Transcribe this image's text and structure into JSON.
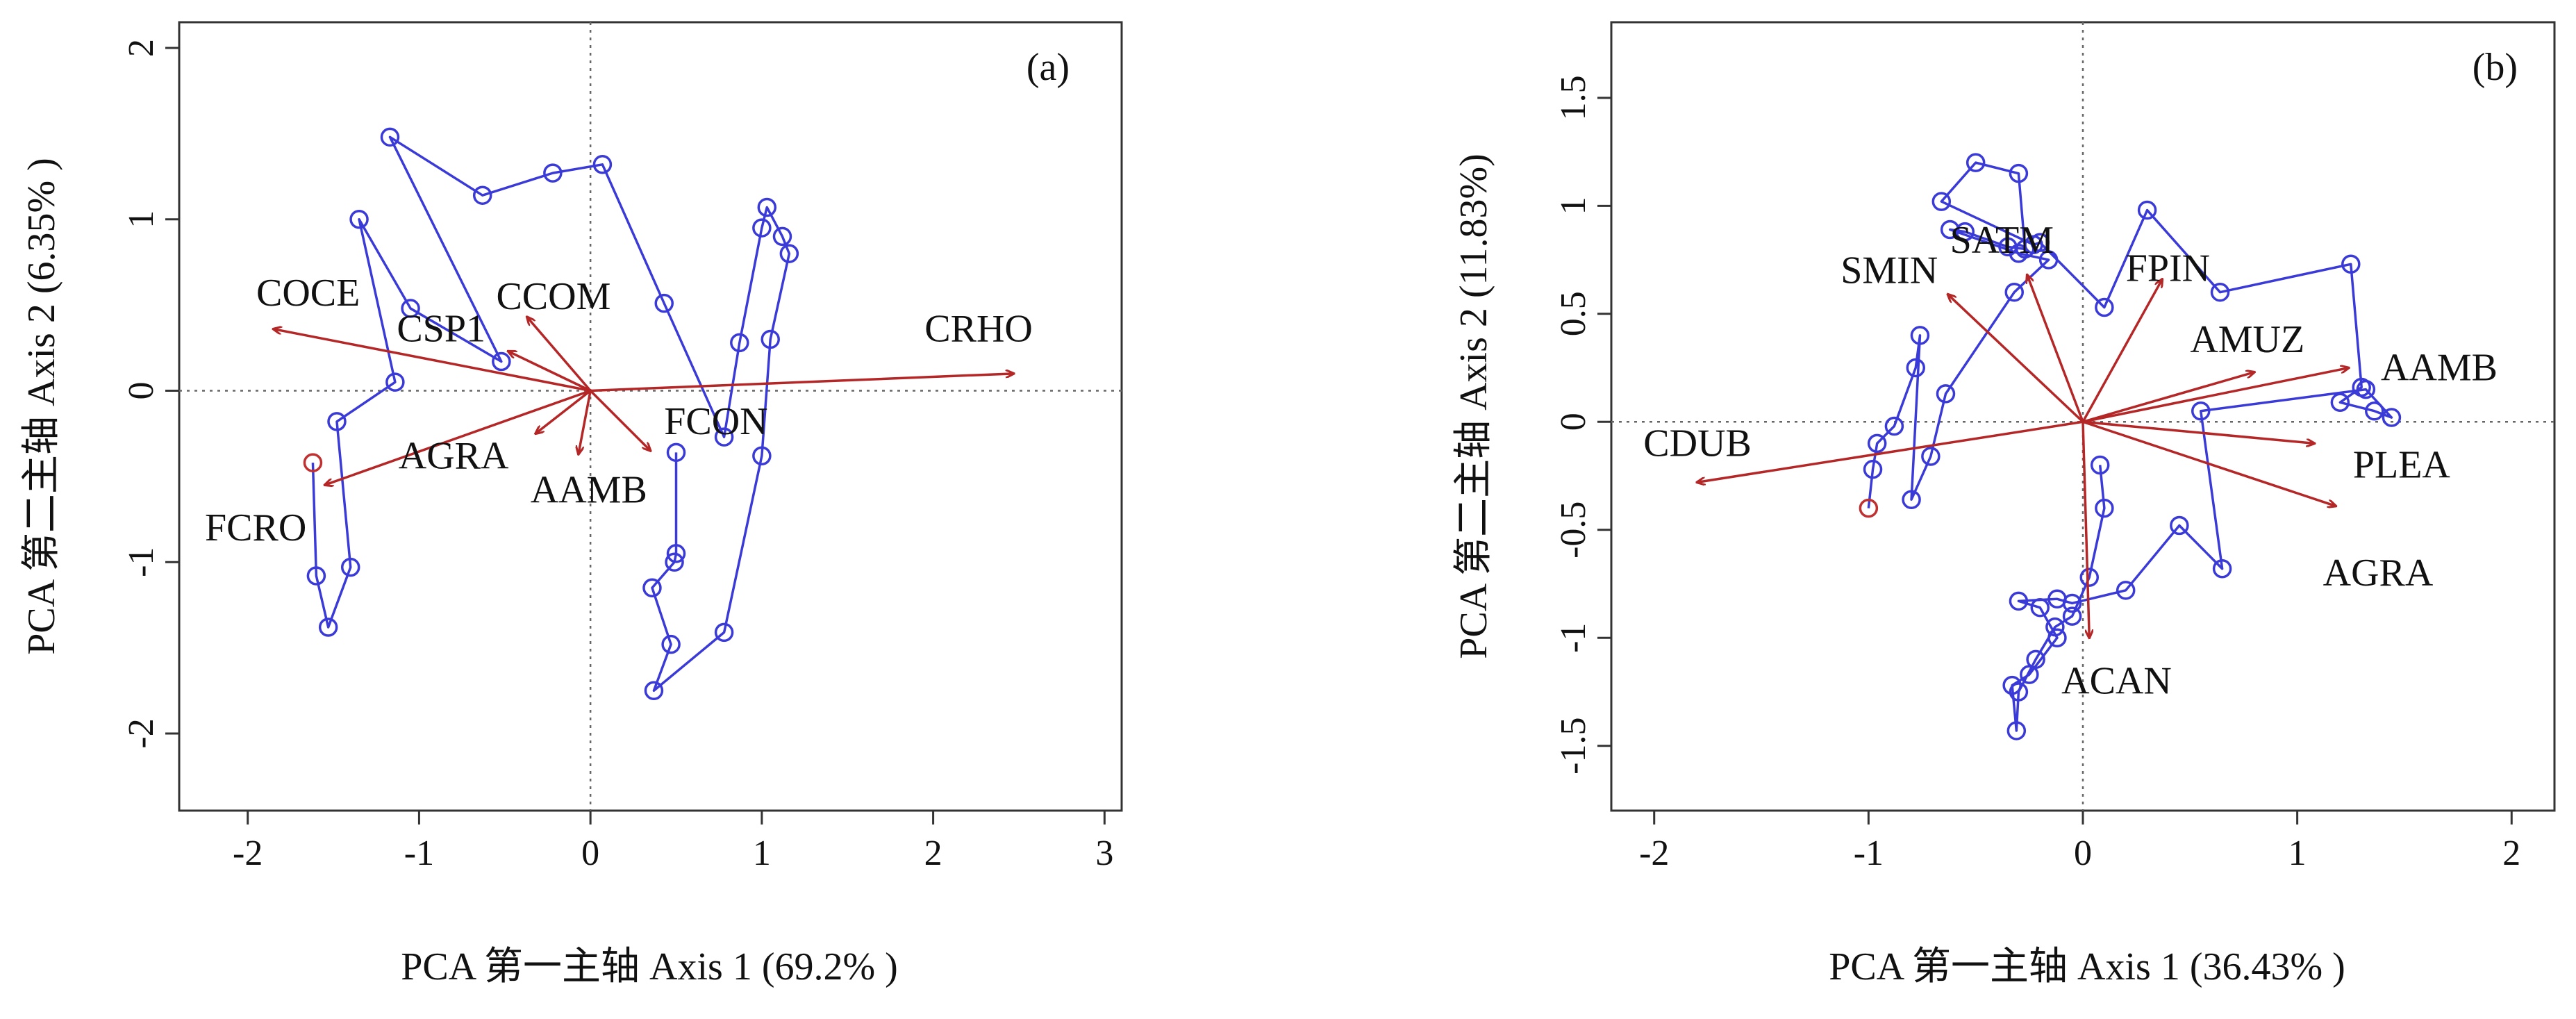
{
  "colors": {
    "trajectory": "#3a3ad8",
    "arrows": "#b52626",
    "start_point": "#c03030",
    "frame": "#333333",
    "reference_lines": "#666666"
  },
  "chart_data": [
    {
      "type": "scatter",
      "panel_label": "(a)",
      "xlabel": "PCA 第一主轴 Axis 1 (69.2% )",
      "ylabel": "PCA 第二主轴 Axis 2 (6.35% )",
      "xlim": [
        -2.4,
        3.1
      ],
      "ylim": [
        -2.45,
        2.15
      ],
      "xticks": [
        -2,
        -1,
        0,
        1,
        2,
        3
      ],
      "yticks": [
        -2,
        -1,
        0,
        1,
        2
      ],
      "reference_lines": "dotted lines at x = 0 and y = 0",
      "trajectory": {
        "start": [
          -1.62,
          -0.42
        ],
        "points": [
          [
            -1.62,
            -0.42
          ],
          [
            -1.6,
            -1.08
          ],
          [
            -1.53,
            -1.38
          ],
          [
            -1.4,
            -1.03
          ],
          [
            -1.48,
            -0.18
          ],
          [
            -1.14,
            0.05
          ],
          [
            -1.35,
            1.0
          ],
          [
            -1.05,
            0.48
          ],
          [
            -0.52,
            0.17
          ],
          [
            -1.17,
            1.48
          ],
          [
            -0.63,
            1.14
          ],
          [
            -0.22,
            1.27
          ],
          [
            0.07,
            1.32
          ],
          [
            0.43,
            0.51
          ],
          [
            0.78,
            -0.27
          ],
          [
            0.87,
            0.28
          ],
          [
            1.0,
            0.95
          ],
          [
            1.03,
            1.07
          ],
          [
            1.12,
            0.9
          ],
          [
            1.16,
            0.8
          ],
          [
            1.05,
            0.3
          ],
          [
            1.0,
            -0.38
          ],
          [
            0.78,
            -1.41
          ],
          [
            0.37,
            -1.75
          ],
          [
            0.47,
            -1.48
          ],
          [
            0.36,
            -1.15
          ],
          [
            0.49,
            -1.0
          ],
          [
            0.5,
            -0.95
          ],
          [
            0.5,
            -0.36
          ]
        ]
      },
      "arrows": [
        {
          "label": "COCE",
          "x": -1.85,
          "y": 0.36
        },
        {
          "label": "CSP1",
          "x": -0.48,
          "y": 0.23
        },
        {
          "label": "CCOM",
          "x": -0.37,
          "y": 0.43
        },
        {
          "label": "CRHO",
          "x": 2.47,
          "y": 0.1
        },
        {
          "label": "FCRO",
          "x": -1.55,
          "y": -0.55
        },
        {
          "label": "AGRA",
          "x": -0.32,
          "y": -0.25
        },
        {
          "label": "AAMB",
          "x": -0.07,
          "y": -0.37
        },
        {
          "label": "FCON",
          "x": 0.35,
          "y": -0.35
        }
      ]
    },
    {
      "type": "scatter",
      "panel_label": "(b)",
      "xlabel": "PCA 第一主轴 Axis 1 (36.43% )",
      "ylabel": "PCA 第二主轴 Axis 2 (11.83%)",
      "xlim": [
        -2.2,
        2.2
      ],
      "ylim": [
        -1.8,
        1.85
      ],
      "xticks": [
        -2,
        -1,
        0,
        1,
        2
      ],
      "yticks": [
        -1.5,
        -1,
        -0.5,
        0,
        0.5,
        1,
        1.5
      ],
      "reference_lines": "dotted lines at x = 0 and y = 0",
      "trajectory": {
        "start": [
          -1.0,
          -0.4
        ],
        "points": [
          [
            -1.0,
            -0.4
          ],
          [
            -0.98,
            -0.22
          ],
          [
            -0.96,
            -0.1
          ],
          [
            -0.88,
            -0.02
          ],
          [
            -0.78,
            0.25
          ],
          [
            -0.76,
            0.4
          ],
          [
            -0.8,
            -0.36
          ],
          [
            -0.71,
            -0.16
          ],
          [
            -0.64,
            0.13
          ],
          [
            -0.32,
            0.6
          ],
          [
            -0.16,
            0.75
          ],
          [
            -0.3,
            0.78
          ],
          [
            -0.62,
            0.89
          ],
          [
            -0.55,
            0.88
          ],
          [
            -0.35,
            0.81
          ],
          [
            -0.27,
            0.8
          ],
          [
            -0.3,
            1.15
          ],
          [
            -0.5,
            1.2
          ],
          [
            -0.66,
            1.02
          ],
          [
            -0.23,
            0.82
          ],
          [
            -0.2,
            0.83
          ],
          [
            0.1,
            0.53
          ],
          [
            0.3,
            0.98
          ],
          [
            0.64,
            0.6
          ],
          [
            1.25,
            0.73
          ],
          [
            1.3,
            0.16
          ],
          [
            1.2,
            0.09
          ],
          [
            1.36,
            0.05
          ],
          [
            1.44,
            0.02
          ],
          [
            1.32,
            0.15
          ],
          [
            0.55,
            0.05
          ],
          [
            0.65,
            -0.68
          ],
          [
            0.45,
            -0.48
          ],
          [
            0.2,
            -0.78
          ],
          [
            -0.05,
            -0.84
          ],
          [
            -0.12,
            -0.82
          ],
          [
            -0.3,
            -0.83
          ],
          [
            -0.2,
            -0.86
          ],
          [
            -0.12,
            -1.0
          ],
          [
            -0.25,
            -1.17
          ],
          [
            -0.33,
            -1.22
          ],
          [
            -0.31,
            -1.43
          ],
          [
            -0.3,
            -1.25
          ],
          [
            -0.22,
            -1.1
          ],
          [
            -0.13,
            -0.95
          ],
          [
            -0.05,
            -0.9
          ],
          [
            0.03,
            -0.72
          ],
          [
            0.1,
            -0.4
          ],
          [
            0.08,
            -0.2
          ]
        ]
      },
      "arrows": [
        {
          "label": "SMIN",
          "x": -0.63,
          "y": 0.59
        },
        {
          "label": "SATM",
          "x": -0.26,
          "y": 0.68
        },
        {
          "label": "FPIN",
          "x": 0.37,
          "y": 0.66
        },
        {
          "label": "AMUZ",
          "x": 0.8,
          "y": 0.23
        },
        {
          "label": "AAMB",
          "x": 1.24,
          "y": 0.25
        },
        {
          "label": "CDUB",
          "x": -1.8,
          "y": -0.28
        },
        {
          "label": "PLEA",
          "x": 1.08,
          "y": -0.1
        },
        {
          "label": "AGRA",
          "x": 1.18,
          "y": -0.39
        },
        {
          "label": "ACAN",
          "x": 0.03,
          "y": -1.0
        }
      ]
    }
  ]
}
